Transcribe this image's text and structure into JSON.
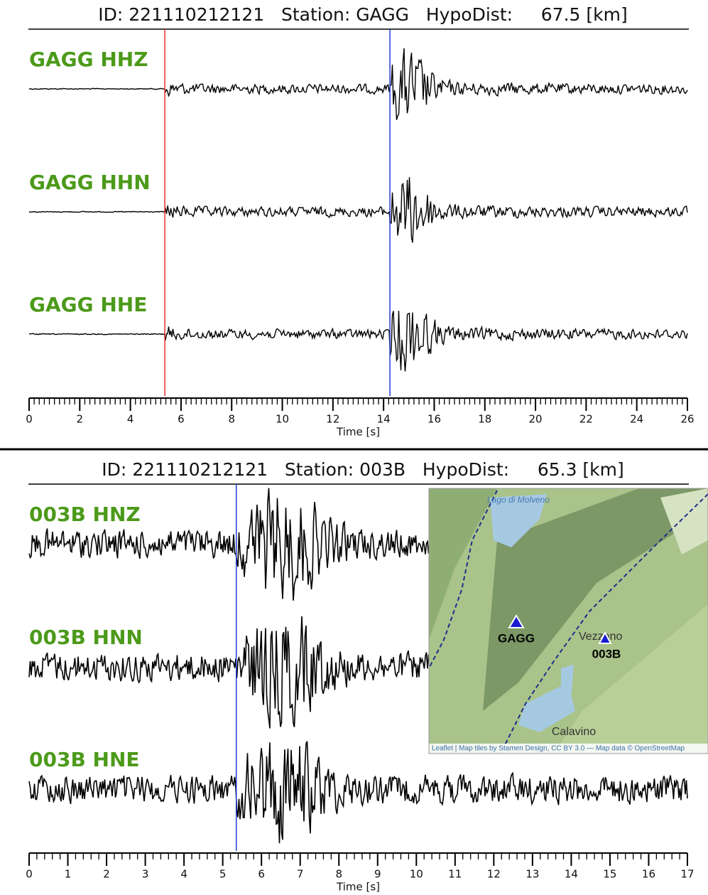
{
  "chart_data": [
    {
      "type": "waveform",
      "title": "ID: 221110212121   Station: GAGG   HypoDist:     67.5 [km]",
      "xlabel": "Time [s]",
      "xlim": [
        0,
        26
      ],
      "xticks": [
        0,
        2,
        4,
        6,
        8,
        10,
        12,
        14,
        16,
        18,
        20,
        22,
        24,
        26
      ],
      "minor_step": 0.2,
      "traces": [
        "GAGG HHZ",
        "GAGG HHN",
        "GAGG HHE"
      ],
      "label_color": "#4c9a1a",
      "trace_color": "#000000",
      "picks": [
        {
          "value": 5.36,
          "color": "#e8302a"
        },
        {
          "value": 14.25,
          "color": "#2a3ad8"
        }
      ]
    },
    {
      "type": "waveform",
      "title": "ID: 221110212121   Station: 003B   HypoDist:     65.3 [km]",
      "xlabel": "Time [s]",
      "xlim": [
        0,
        17
      ],
      "xticks": [
        0,
        1,
        2,
        3,
        4,
        5,
        6,
        7,
        8,
        9,
        10,
        11,
        12,
        13,
        14,
        15,
        16,
        17
      ],
      "minor_step": 0.2,
      "traces": [
        "003B HNZ",
        "003B HNN",
        "003B HNE"
      ],
      "label_color": "#4c9a1a",
      "trace_color": "#000000",
      "picks": [
        {
          "value": 5.35,
          "color": "#2a3ad8"
        }
      ]
    }
  ],
  "map": {
    "lake": "Lago di Molveno",
    "town1": "Vezzano",
    "town2": "Calavino",
    "station1": "GAGG",
    "station2": "003B",
    "attribution": "Leaflet | Map tiles by Stamen Design, CC BY 3.0 — Map data © OpenStreetMap"
  }
}
